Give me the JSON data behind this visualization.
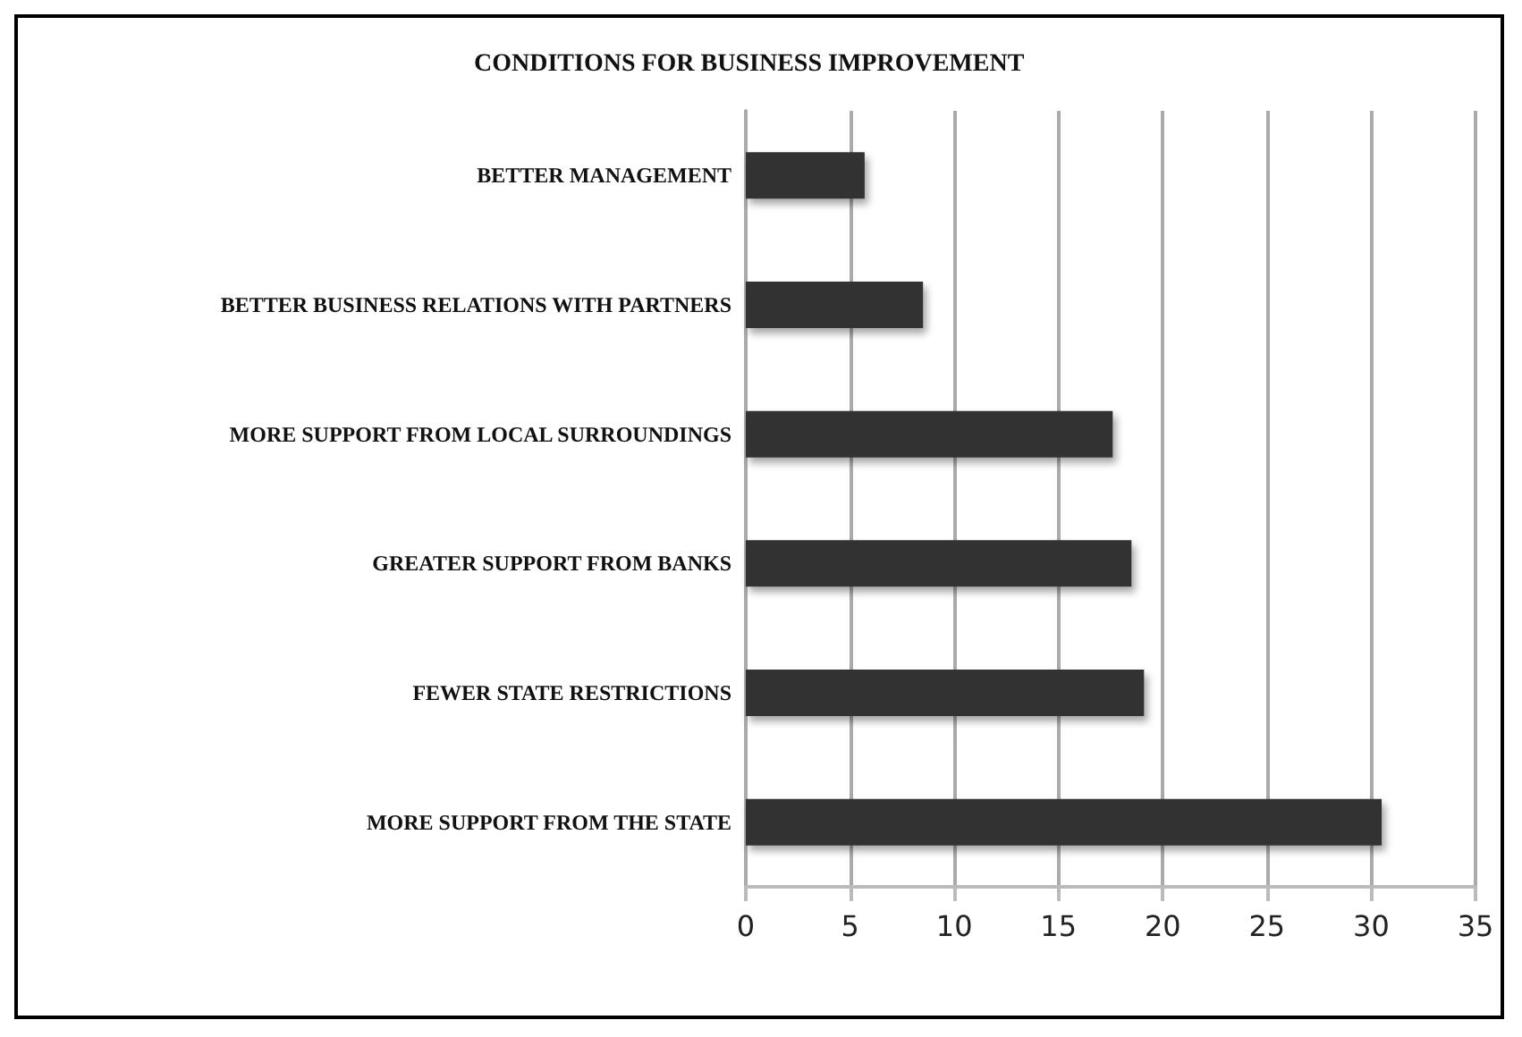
{
  "chart_data": {
    "type": "bar",
    "orientation": "horizontal",
    "title": "CONDITIONS FOR BUSINESS IMPROVEMENT",
    "categories": [
      "BETTER MANAGEMENT",
      "BETTER BUSINESS RELATIONS WITH PARTNERS",
      "MORE SUPPORT FROM LOCAL SURROUNDINGS",
      "GREATER SUPPORT FROM BANKS",
      "FEWER STATE RESTRICTIONS",
      "MORE SUPPORT FROM THE STATE"
    ],
    "values": [
      5.7,
      8.5,
      17.6,
      18.5,
      19.1,
      30.5
    ],
    "color": "#333333",
    "xlim": [
      0,
      35
    ],
    "xticks": [
      0,
      5,
      10,
      15,
      20,
      25,
      30,
      35
    ],
    "grid": "x"
  }
}
